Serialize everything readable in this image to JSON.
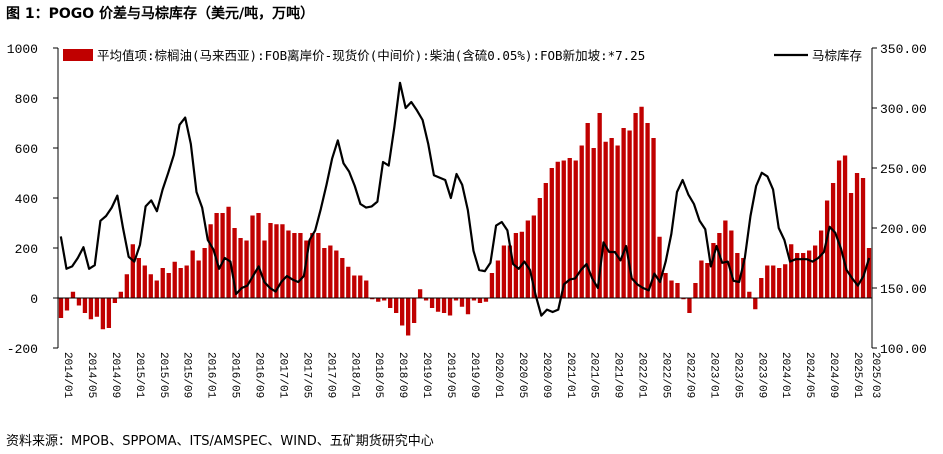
{
  "figure": {
    "title": "图 1：POGO 价差与马棕库存（美元/吨，万吨）",
    "source": "资料来源：MPOB、SPPOMA、ITS/AMSPEC、WIND、五矿期货研究中心"
  },
  "colors": {
    "bar": "#C00000",
    "line": "#000000",
    "axis": "#000000"
  },
  "chart_data": {
    "type": "bar",
    "grid": false,
    "legend_position": "top",
    "x_labels": [
      "2014/01",
      "2014/05",
      "2014/09",
      "2015/01",
      "2015/05",
      "2015/09",
      "2016/01",
      "2016/05",
      "2016/09",
      "2017/01",
      "2017/05",
      "2017/09",
      "2018/01",
      "2018/05",
      "2018/09",
      "2019/01",
      "2019/05",
      "2019/09",
      "2020/01",
      "2020/05",
      "2020/09",
      "2021/01",
      "2021/05",
      "2021/09",
      "2022/01",
      "2022/05",
      "2022/09",
      "2023/01",
      "2023/05",
      "2023/09",
      "2024/01",
      "2024/05",
      "2024/09",
      "2025/01"
    ],
    "x_labels_extra": [
      "2025/03"
    ],
    "x_tick_labels": [
      "2014/01",
      "2014/05",
      "2014/09",
      "2015/01",
      "2015/05",
      "2015/09",
      "2016/01",
      "2016/05",
      "2016/09",
      "2017/01",
      "2017/05",
      "2017/09",
      "2018/01",
      "2018/05",
      "2018/09",
      "2019/01",
      "2019/05",
      "2019/09",
      "2020/01",
      "2020/05",
      "2020/09",
      "2021/01",
      "2021/05",
      "2021/09",
      "2022/01",
      "2022/05",
      "2022/09",
      "2023/01",
      "2023/05",
      "2023/09",
      "2024/01",
      "2024/05",
      "2024/09",
      "2025/01",
      "2025/03"
    ],
    "y_left": {
      "range": [
        -200,
        1000
      ],
      "ticks": [
        "-200",
        "0",
        "200",
        "400",
        "600",
        "800",
        "1000"
      ]
    },
    "y_right": {
      "range": [
        100,
        350
      ],
      "ticks": [
        "100.00",
        "150.00",
        "200.00",
        "250.00",
        "300.00",
        "350.00"
      ]
    },
    "series": [
      {
        "name": "平均值项:棕榈油(马来西亚):FOB离岸价-现货价(中间价):柴油(含硫0.05%):FOB新加坡:*7.25",
        "type": "bar",
        "axis": "left",
        "values": [
          -80,
          -50,
          25,
          -30,
          -60,
          -85,
          -75,
          -125,
          -120,
          -20,
          25,
          95,
          215,
          160,
          130,
          95,
          70,
          120,
          100,
          145,
          120,
          130,
          190,
          150,
          200,
          295,
          340,
          340,
          365,
          280,
          240,
          230,
          330,
          340,
          230,
          300,
          295,
          295,
          270,
          260,
          260,
          230,
          260,
          260,
          200,
          210,
          190,
          160,
          125,
          90,
          90,
          70,
          -5,
          -15,
          -10,
          -40,
          -60,
          -110,
          -150,
          -100,
          35,
          -10,
          -40,
          -55,
          -60,
          -70,
          -10,
          -35,
          -65,
          -10,
          -20,
          -15,
          100,
          150,
          210,
          210,
          260,
          265,
          310,
          330,
          400,
          460,
          520,
          545,
          550,
          560,
          550,
          610,
          700,
          600,
          740,
          625,
          640,
          610,
          680,
          670,
          740,
          765,
          700,
          640,
          245,
          100,
          70,
          60,
          -5,
          -60,
          60,
          150,
          140,
          220,
          260,
          310,
          270,
          180,
          160,
          25,
          -45,
          80,
          130,
          130,
          120,
          135,
          215,
          180,
          180,
          190,
          210,
          270,
          390,
          460,
          550,
          570,
          420,
          500,
          480,
          200
        ],
        "label_visible": true
      },
      {
        "name": "马棕库存",
        "type": "line",
        "axis": "right",
        "values": [
          193,
          166,
          168,
          175,
          184,
          166,
          169,
          206,
          210,
          217,
          227,
          200,
          176,
          172,
          186,
          218,
          223,
          214,
          232,
          246,
          261,
          286,
          292,
          270,
          230,
          217,
          190,
          182,
          166,
          175,
          172,
          145,
          150,
          152,
          160,
          168,
          155,
          150,
          147,
          155,
          160,
          157,
          155,
          160,
          190,
          198,
          216,
          236,
          258,
          273,
          254,
          247,
          235,
          220,
          217,
          218,
          222,
          255,
          252,
          284,
          321,
          300,
          305,
          298,
          290,
          270,
          244,
          242,
          240,
          225,
          245,
          236,
          215,
          181,
          165,
          164,
          171,
          202,
          205,
          198,
          170,
          166,
          172,
          165,
          144,
          127,
          132,
          130,
          132,
          153,
          157,
          158,
          165,
          170,
          158,
          150,
          188,
          180,
          180,
          173,
          185,
          158,
          153,
          150,
          148,
          162,
          155,
          172,
          195,
          230,
          240,
          228,
          220,
          206,
          199,
          168,
          185,
          171,
          172,
          156,
          155,
          175,
          210,
          235,
          246,
          243,
          232,
          200,
          190,
          172,
          174,
          174,
          174,
          172,
          175,
          180,
          201,
          196,
          183,
          165,
          158,
          152,
          160,
          175
        ],
        "label_visible": true
      }
    ]
  }
}
